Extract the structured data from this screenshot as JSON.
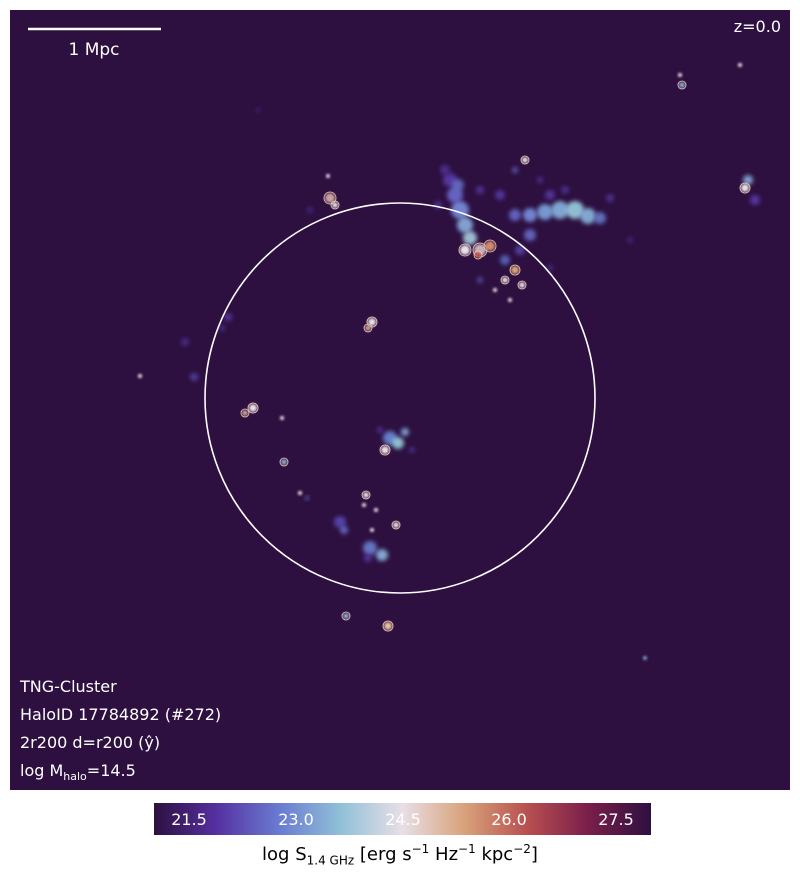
{
  "image": {
    "redshift_label": "z=0.0",
    "scalebar_label": "1 Mpc",
    "info_lines": {
      "simulation": "TNG-Cluster",
      "halo_id": "HaloID 17784892 (#272)",
      "projection": "2r200 d=r200 (ŷ)",
      "mass_prefix": "log M",
      "mass_sub": "halo",
      "mass_suffix": "=14.5"
    },
    "colors": {
      "background": "#2d1040",
      "circle": "#ffffff",
      "contour": "#f0c8b0"
    }
  },
  "colorbar": {
    "tick_labels": [
      "21.5",
      "23.0",
      "24.5",
      "26.0",
      "27.5"
    ],
    "label": {
      "prefix": "log S",
      "sub": "1.4 GHz",
      "units_1": " [erg s",
      "sup_1": "−1",
      "units_2": " Hz",
      "sup_2": "−1",
      "units_3": " kpc",
      "sup_3": "−2",
      "units_4": "]"
    },
    "stops": [
      "#2d1040",
      "#5530a0",
      "#6a7ad0",
      "#90c0d8",
      "#e8dfe6",
      "#d8a27a",
      "#b85050",
      "#7a1e4a",
      "#2d1040"
    ]
  }
}
